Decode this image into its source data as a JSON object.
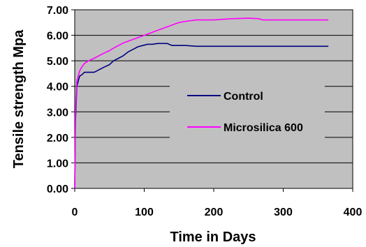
{
  "chart_data": {
    "type": "line",
    "xlabel": "Time in Days",
    "ylabel": "Tensile strength Mpa",
    "xlim": [
      0,
      400
    ],
    "ylim": [
      0,
      7
    ],
    "x_ticks": [
      "0",
      "100",
      "200",
      "300",
      "400"
    ],
    "y_ticks": [
      "0.00",
      "1.00",
      "2.00",
      "3.00",
      "4.00",
      "5.00",
      "6.00",
      "7.00"
    ],
    "grid": "horizontal",
    "legend_position": "center-right",
    "plot_background": "#c0c0c0",
    "series": [
      {
        "name": "Control",
        "color": "#000080",
        "x": [
          0,
          1,
          3,
          7,
          10,
          14,
          20,
          28,
          35,
          42,
          50,
          56,
          63,
          70,
          77,
          84,
          91,
          98,
          105,
          112,
          119,
          126,
          133,
          140,
          150,
          160,
          175,
          200,
          250,
          300,
          365
        ],
        "y": [
          0.0,
          2.6,
          4.0,
          4.4,
          4.45,
          4.55,
          4.55,
          4.55,
          4.65,
          4.75,
          4.85,
          5.0,
          5.1,
          5.2,
          5.35,
          5.45,
          5.55,
          5.6,
          5.65,
          5.65,
          5.68,
          5.68,
          5.68,
          5.6,
          5.6,
          5.6,
          5.57,
          5.57,
          5.57,
          5.57,
          5.57
        ]
      },
      {
        "name": "Microsilica 600",
        "color": "#ff00ff",
        "x": [
          0,
          1,
          3,
          7,
          10,
          14,
          20,
          28,
          35,
          42,
          50,
          56,
          63,
          70,
          80,
          90,
          100,
          110,
          120,
          130,
          140,
          150,
          160,
          175,
          200,
          225,
          250,
          265,
          270,
          300,
          365
        ],
        "y": [
          0.0,
          2.9,
          4.2,
          4.6,
          4.75,
          4.9,
          5.0,
          5.1,
          5.2,
          5.3,
          5.4,
          5.5,
          5.6,
          5.7,
          5.8,
          5.9,
          6.0,
          6.1,
          6.2,
          6.3,
          6.4,
          6.5,
          6.55,
          6.6,
          6.6,
          6.65,
          6.67,
          6.65,
          6.6,
          6.6,
          6.6
        ]
      }
    ]
  }
}
